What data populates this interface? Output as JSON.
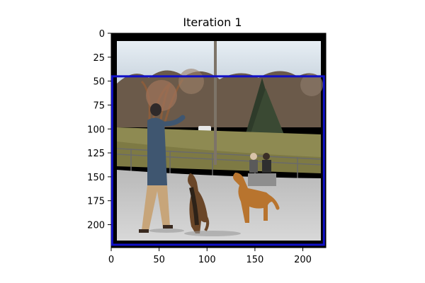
{
  "figure": {
    "title": "Iteration 1"
  },
  "image_axes": {
    "x_ticks": [
      0,
      50,
      100,
      150,
      200
    ],
    "y_ticks": [
      0,
      25,
      50,
      75,
      100,
      125,
      150,
      175,
      200
    ],
    "x_range": [
      0,
      224
    ],
    "y_range": [
      0,
      224
    ],
    "grid": false
  },
  "bounding_box": {
    "color": "#1010c8",
    "x_min": 1,
    "x_max": 222,
    "y_min": 45,
    "y_max": 221
  },
  "photo": {
    "description_icon": "dog-training-park-photo",
    "colors": {
      "sky": "#dde6ee",
      "ground": "#c9c9c9",
      "grass": "#8e8a52",
      "frame": "#000000"
    }
  }
}
